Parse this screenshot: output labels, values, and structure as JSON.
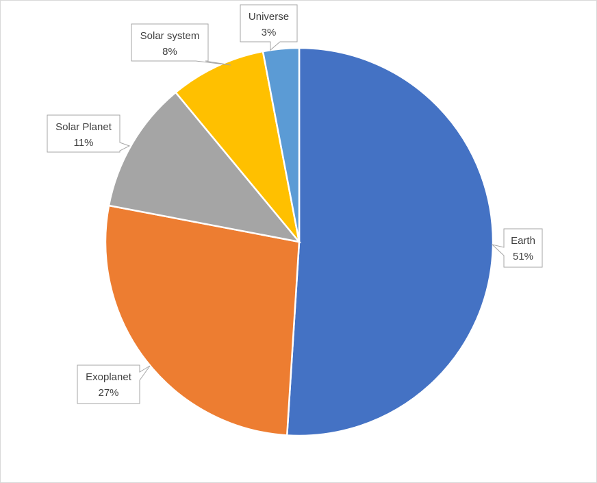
{
  "chart_data": {
    "type": "pie",
    "title": "",
    "categories": [
      "Earth",
      "Exoplanet",
      "Solar Planet",
      "Solar system",
      "Universe"
    ],
    "values": [
      51,
      27,
      11,
      8,
      3
    ],
    "value_labels": [
      "51%",
      "27%",
      "11%",
      "8%",
      "3%"
    ],
    "colors": [
      "#4472C4",
      "#ED7D31",
      "#A5A5A5",
      "#FFC000",
      "#5B9BD5"
    ],
    "start_angle_deg": 0,
    "direction": "clockwise",
    "legend": "none",
    "data_labels": "callouts with category name and percentage"
  }
}
